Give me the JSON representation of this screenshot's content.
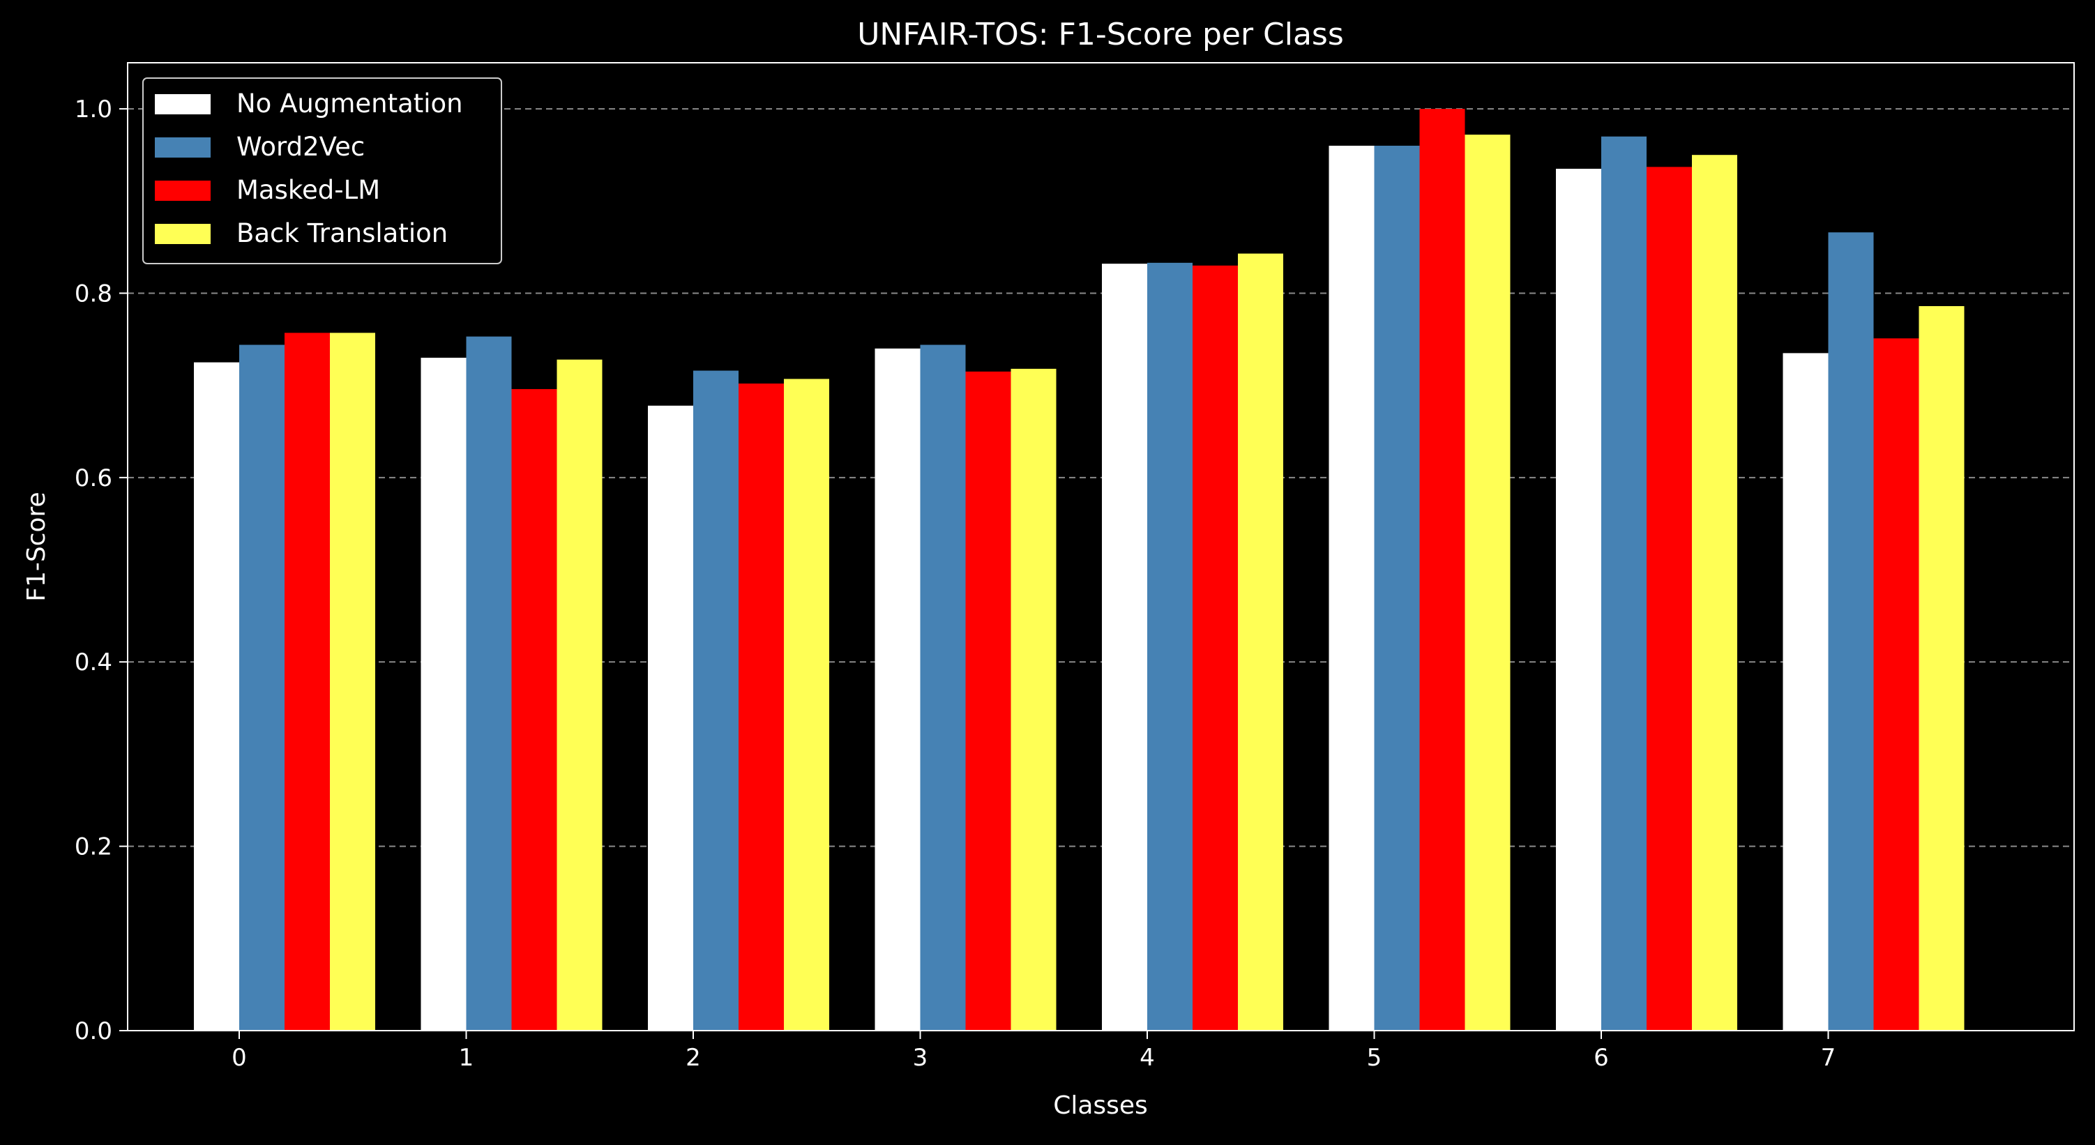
{
  "chart_data": {
    "type": "bar",
    "title": "UNFAIR-TOS: F1-Score per Class",
    "xlabel": "Classes",
    "ylabel": "F1-Score",
    "categories": [
      "0",
      "1",
      "2",
      "3",
      "4",
      "5",
      "6",
      "7"
    ],
    "ylim": [
      0,
      1.05
    ],
    "yticks": [
      "0.0",
      "0.2",
      "0.4",
      "0.6",
      "0.8",
      "1.0"
    ],
    "grid": "horizontal dashed",
    "legend_position": "top-left",
    "series": [
      {
        "name": "No Augmentation",
        "color": "#ffffff",
        "values": [
          0.725,
          0.73,
          0.678,
          0.74,
          0.832,
          0.96,
          0.935,
          0.735
        ]
      },
      {
        "name": "Word2Vec",
        "color": "#4682b4",
        "values": [
          0.744,
          0.753,
          0.716,
          0.744,
          0.833,
          0.96,
          0.97,
          0.866
        ]
      },
      {
        "name": "Masked-LM",
        "color": "#ff0000",
        "values": [
          0.757,
          0.696,
          0.702,
          0.715,
          0.83,
          1.0,
          0.937,
          0.751
        ]
      },
      {
        "name": "Back Translation",
        "color": "#ffff55",
        "values": [
          0.757,
          0.728,
          0.707,
          0.718,
          0.843,
          0.972,
          0.95,
          0.786
        ]
      }
    ]
  }
}
